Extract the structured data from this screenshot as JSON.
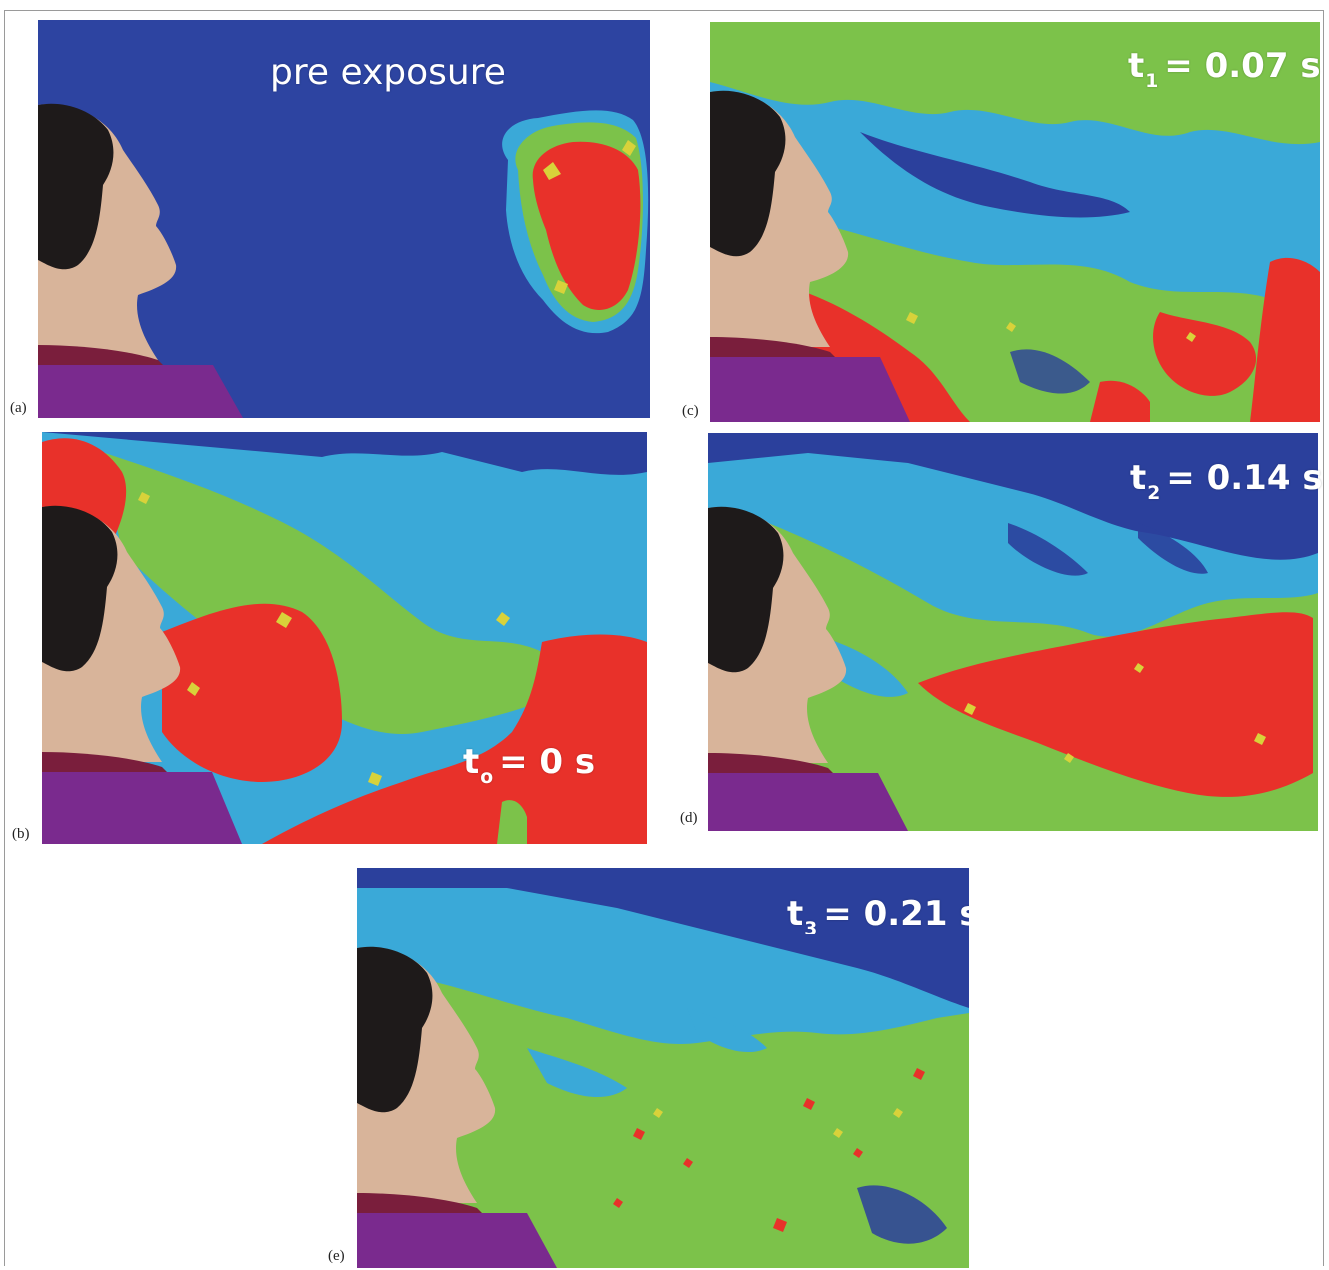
{
  "figure": {
    "panels": [
      {
        "letter": "(a)",
        "label_main": "pre exposure",
        "label_sub": "",
        "label_rest": ""
      },
      {
        "letter": "(b)",
        "label_main": "t",
        "label_sub": "o",
        "label_rest": "= 0 s"
      },
      {
        "letter": "(c)",
        "label_main": "t",
        "label_sub": "1",
        "label_rest": "= 0.07 s"
      },
      {
        "letter": "(d)",
        "label_main": "t",
        "label_sub": "2",
        "label_rest": "= 0.14 s"
      },
      {
        "letter": "(e)",
        "label_main": "t",
        "label_sub": "3",
        "label_rest": "= 0.21 s"
      }
    ]
  },
  "colors": {
    "background_blue": "#2a3f9a",
    "cyan": "#3aa9d8",
    "green": "#7cc24a",
    "yellow": "#d8d23a",
    "red": "#e8312a",
    "skin": "#d8b49a",
    "hair": "#1e1a1a",
    "shirt_maroon": "#7a1e3c",
    "shirt_purple": "#7a2a8e"
  }
}
